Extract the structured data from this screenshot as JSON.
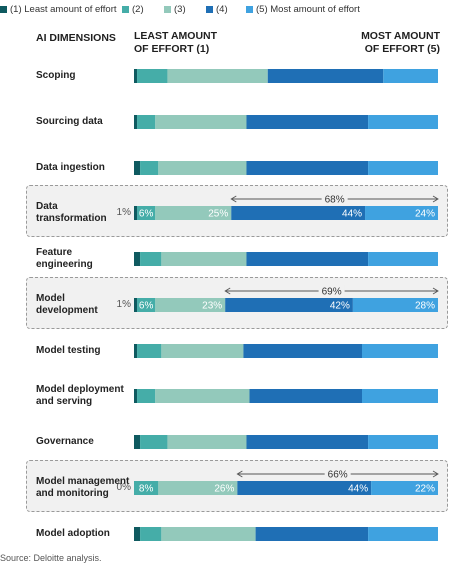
{
  "legend": [
    {
      "label": "(1) Least amount of effort",
      "color": "#0f5a60"
    },
    {
      "label": "(2)",
      "color": "#45ada8"
    },
    {
      "label": "(3)",
      "color": "#93c9bb"
    },
    {
      "label": "(4)",
      "color": "#1f6fb5"
    },
    {
      "label": "(5) Most amount of effort",
      "color": "#3fa2e0"
    }
  ],
  "headers": {
    "dimensions": "AI DIMENSIONS",
    "least": [
      "LEAST AMOUNT",
      "OF EFFORT (1)"
    ],
    "most": [
      "MOST AMOUNT",
      "OF EFFORT (5)"
    ]
  },
  "source": "Source: Deloitte analysis.",
  "chart_data": {
    "type": "bar",
    "orientation": "horizontal",
    "stacked": true,
    "unit": "%",
    "categories": [
      "Scoping",
      "Sourcing data",
      "Data ingestion",
      "Data transformation",
      "Feature engineering",
      "Model development",
      "Model testing",
      "Model deployment and serving",
      "Governance",
      "Model management and monitoring",
      "Model adoption"
    ],
    "category_lines": [
      [
        "Scoping"
      ],
      [
        "Sourcing data"
      ],
      [
        "Data ingestion"
      ],
      [
        "Data",
        "transformation"
      ],
      [
        "Feature",
        "engineering"
      ],
      [
        "Model",
        "development"
      ],
      [
        "Model testing"
      ],
      [
        "Model deployment",
        "and serving"
      ],
      [
        "Governance"
      ],
      [
        "Model management",
        "and monitoring"
      ],
      [
        "Model adoption"
      ]
    ],
    "series": [
      {
        "name": "(1) Least amount of effort",
        "values": [
          1,
          1,
          2,
          1,
          2,
          1,
          1,
          1,
          2,
          0,
          2
        ]
      },
      {
        "name": "(2)",
        "values": [
          10,
          6,
          6,
          6,
          7,
          6,
          8,
          6,
          9,
          8,
          7
        ]
      },
      {
        "name": "(3)",
        "values": [
          33,
          30,
          29,
          25,
          28,
          23,
          27,
          31,
          26,
          26,
          31
        ]
      },
      {
        "name": "(4)",
        "values": [
          38,
          40,
          40,
          44,
          40,
          42,
          39,
          37,
          40,
          44,
          37
        ]
      },
      {
        "name": "(5) Most amount of effort",
        "values": [
          18,
          23,
          23,
          24,
          23,
          28,
          25,
          25,
          23,
          22,
          23
        ]
      }
    ],
    "highlighted": [
      {
        "category": "Data transformation",
        "labels": [
          "1%",
          "6%",
          "25%",
          "44%",
          "24%"
        ],
        "total_label": "68%"
      },
      {
        "category": "Model development",
        "labels": [
          "1%",
          "6%",
          "23%",
          "42%",
          "28%"
        ],
        "total_label": "69%"
      },
      {
        "category": "Model management and monitoring",
        "labels": [
          "0%",
          "8%",
          "26%",
          "44%",
          "22%"
        ],
        "total_label": "66%"
      }
    ],
    "xlim": [
      0,
      100
    ]
  }
}
